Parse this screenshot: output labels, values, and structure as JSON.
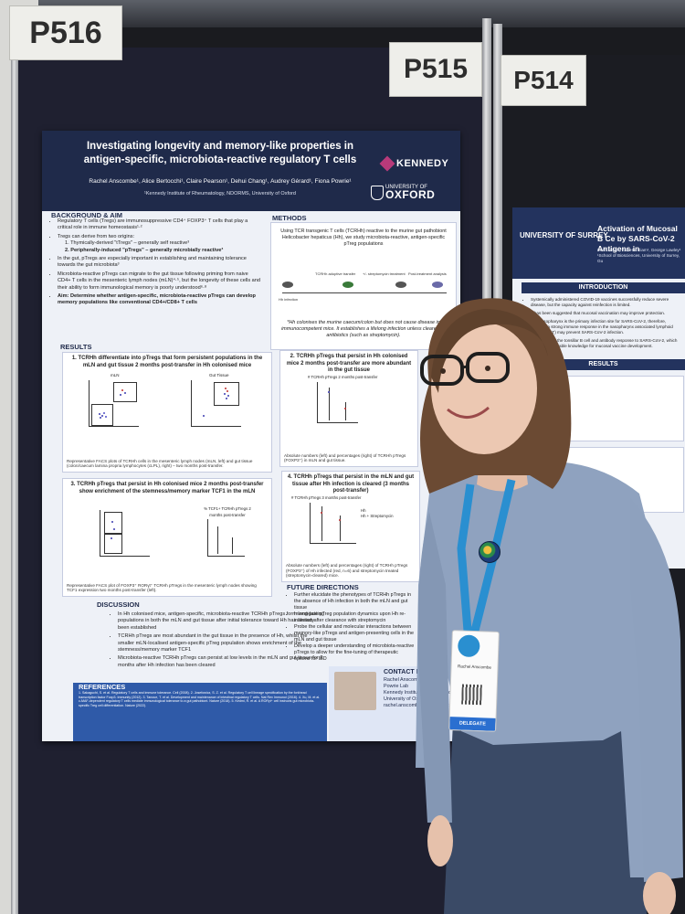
{
  "booths": {
    "left_number": "P516",
    "middle_number": "P515",
    "right_number": "P514"
  },
  "poster": {
    "title_line1": "Investigating longevity and memory-like properties in",
    "title_line2": "antigen-specific, microbiota-reactive regulatory T cells",
    "authors": "Rachel Anscombe¹, Alice Bertocchi¹, Claire Pearson¹, Dehui Chang¹, Audrey Gérard¹, Fiona Powrie¹",
    "affiliation": "¹Kennedy Institute of Rheumatology, NDORMS, University of Oxford",
    "logo_kennedy": "KENNEDY",
    "logo_oxford_small": "UNIVERSITY OF",
    "logo_oxford_big": "OXFORD",
    "background_heading": "BACKGROUND & AIM",
    "background": {
      "b1": "Regulatory T cells (Tregs) are immunosuppressive CD4⁺ FOXP3⁺ T cells that play a critical role in immune homeostasis¹·²",
      "b2": "Tregs can derive from two origins:",
      "b2a": "1. Thymically-derived \"tTregs\" – generally self reactive³",
      "b2b": "2. Peripherally-induced \"pTregs\" – generally microbially reactive³",
      "b3": "In the gut, pTregs are especially important in establishing and maintaining tolerance towards the gut microbiota³",
      "b4": "Microbiota-reactive pTregs can migrate to the gut tissue following priming from naive CD4+ T cells in the mesenteric lymph nodes (mLN)⁴·⁵, but the longevity of these cells and their ability to form immunological memory is poorly understood⁶·⁸",
      "aim": "Aim: Determine whether antigen-specific, microbiota-reactive pTregs can develop memory populations like conventional CD4+/CD8+ T cells"
    },
    "methods_heading": "METHODS",
    "methods_intro": "Using TCR transgenic T cells (TCRHh) reactive to the murine gut pathobiont Helicobacter hepaticus (Hh), we study microbiota-reactive, antigen-specific pTreg populations",
    "methods_foot": "*Hh colonises the murine caecum/colon but does not cause disease in immunocompetent mice. It establishes a lifelong infection unless cleared by antibiotics (such as streptomycin).",
    "methods_labels": [
      "Hh infection",
      "TCRHh adoptive transfer",
      "+/- streptomycin treatment",
      "Post-treatment analysis"
    ],
    "results_heading": "RESULTS",
    "panel1": {
      "heading": "1. TCRHh differentiate into pTregs that form persistent populations in the mLN and gut tissue 2 months post-transfer in Hh colonised mice",
      "sub_left": "mLN",
      "sub_right": "Gut Tissue",
      "caption": "Representative FACS plots of TCRHh cells in the mesenteric lymph nodes (mLN, left) and gut tissue (colon/caecum lamina propria lymphocytes (cLPL), right) – two months post-transfer."
    },
    "panel2": {
      "heading": "2. TCRHh pTregs that persist in Hh colonised mice 2 months post-transfer are more abundant in the gut tissue",
      "plot_label": "# TCRHh pTregs 2 months post-transfer",
      "caption": "Absolute numbers (left) and percentages (right) of TCRHh pTregs (FOXP3⁺) in mLN and gut tissue."
    },
    "panel3": {
      "heading": "3. TCRHh pTregs that persist in Hh colonised mice 2 months post-transfer show enrichment of the stemness/memory marker TCF1 in the mLN",
      "plot_label": "% TCF1+ TCRHh pTregs 2 months post-transfer",
      "caption": "Representative FACS plot of FOXP3⁺ RORγt⁺ TCRHh pTregs in the mesenteric lymph nodes showing TCF1 expression two months post-transfer (left)."
    },
    "panel4": {
      "heading": "4. TCRHh pTregs that persist in the mLN and gut tissue after Hh infection is cleared (3 months post-transfer)",
      "plot_label": "# TCRHh pTregs 3 months post-transfer",
      "legend1": "Hh",
      "legend2": "Hh + Streptomycin",
      "caption": "Absolute numbers (left) and percentages (right) of TCRHh pTregs (FOXP3⁺) of Hh infected (red, n=6) and streptomycin treated (streptomycin-cleared) mice."
    },
    "discussion_heading": "DISCUSSION",
    "discussion": {
      "d1": "In Hh colonised mice, antigen-specific, microbiota-reactive TCRHh pTregs form long-lasting populations in both the mLN and gut tissue after initial tolerance toward Hh has already been established",
      "d2": "TCRHh pTregs are most abundant in the gut tissue in the presence of Hh, whilst the smaller mLN-localised antigen-specific pTreg population shows enrichment of the stemness/memory marker TCF1",
      "d3": "Microbiota-reactive TCRHh pTregs can persist at low levels in the mLN and gut tissue for 2 months after Hh infection has been cleared"
    },
    "future_heading": "FUTURE DIRECTIONS",
    "future": {
      "f1": "Further elucidate the phenotypes of TCRHh pTregs in the absence of Hh infection in both the mLN and gut tissue",
      "f2": "Investigate pTreg population dynamics upon Hh re-infection after clearance with streptomycin",
      "f3": "Probe the cellular and molecular interactions between memory-like pTregs and antigen-presenting cells in the mLN and gut tissue",
      "f4": "Develop a deeper understanding of microbiota-reactive pTregs to allow for the fine-tuning of therapeutic options for IBD"
    },
    "references_heading": "REFERENCES",
    "references_text": "1. Sakaguchi, S. et al. Regulatory T cells and immune tolerance. Cell (2008). 2. Josefowicz, S. Z. et al. Regulatory T cell lineage specification by the forkhead transcription factor Foxp3. Immunity (2012). 3. Tanoue, T. et al. Development and maintenance of intestinal regulatory T cells. Nat Rev Immunol (2016). 4. Xu, M. et al. c-MAF-dependent regulatory T cells mediate immunological tolerance to a gut pathobiont. Nature (2018). 5. Kedmi, R. et al. A RORγt⁺ cell instructs gut microbiota-specific Treg cell differentiation. Nature (2022).",
    "contact_heading": "CONTACT INFO",
    "contact": {
      "name": "Rachel Anscombe",
      "lab": "Powrie Lab",
      "institute": "Kennedy Institute of Rheumatology",
      "university": "University of Oxford",
      "email": "rachel.anscombe@ndorms.ox.ac.uk"
    }
  },
  "poster2": {
    "logo": "UNIVERSITY OF SURREY",
    "title": "Activation of Mucosal B Ce by SARS-CoV-2 Antigens in",
    "authors": "Leah Johal¹, Yan Hui Giam¹, George Lawley¹ ¹School of Biosciences, University of Surrey, Gu",
    "intro_heading": "INTRODUCTION",
    "i1": "Systemically administered COVID-19 vaccines successfully reduce severe disease, but the capacity against reinfection is limited.",
    "i2": "It has been suggested that mucosal vaccination may improve protection.",
    "i3": "The nasopharynx is the primary infection site for SARS-CoV-2, therefore, inducing a strong immune response in the nasopharynx associated lymphoid tissue (NALT) may prevent SARS-CoV-2 infection.",
    "aim": "Aim: To examine the tonsillar B cell and antibody response to SARS-CoV-2, which could provide valuable knowledge for mucosal vaccine development.",
    "results_heading": "RESULTS"
  },
  "badge": {
    "name_line": "Rachel Anscombe",
    "role": "DELEGATE"
  },
  "colors": {
    "poster_header": "#1f2a4a",
    "references_bg": "#2f5aa8",
    "contact_bg": "#dfe6f5",
    "lanyard": "#2a8fd0"
  }
}
